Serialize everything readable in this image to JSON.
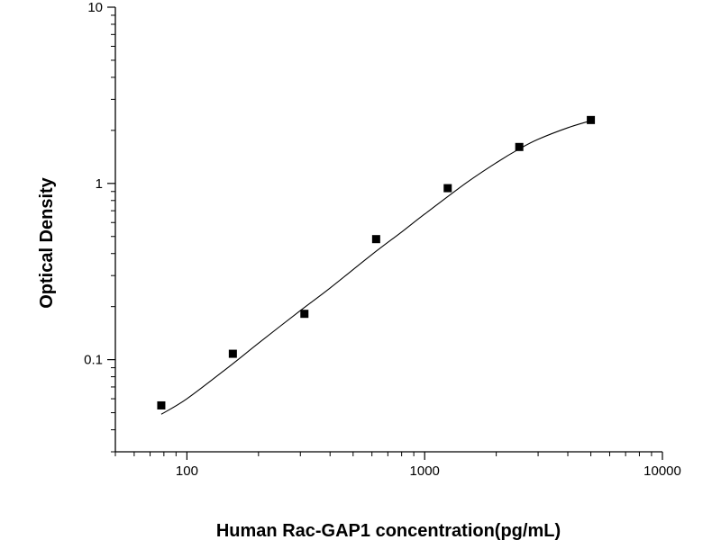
{
  "chart_data": {
    "type": "scatter",
    "title": "",
    "xlabel": "Human Rac-GAP1 concentration(pg/mL)",
    "ylabel": "Optical Density",
    "x_scale": "log",
    "y_scale": "log",
    "xlim": [
      50,
      10000
    ],
    "ylim": [
      0.03,
      10
    ],
    "x_ticks": [
      {
        "value": 100,
        "label": "100"
      },
      {
        "value": 1000,
        "label": "1000"
      },
      {
        "value": 10000,
        "label": "10000"
      }
    ],
    "y_ticks": [
      {
        "value": 0.1,
        "label": "0.1"
      },
      {
        "value": 1,
        "label": "1"
      },
      {
        "value": 10,
        "label": "10"
      }
    ],
    "grid": false,
    "legend": "none",
    "series": [
      {
        "marker": "square",
        "color": "#000000",
        "x": [
          78,
          156,
          312,
          625,
          1250,
          2500,
          5000
        ],
        "y": [
          0.055,
          0.108,
          0.182,
          0.483,
          0.94,
          1.61,
          2.29
        ]
      }
    ],
    "fit_curve": {
      "style": "line",
      "color": "#000000",
      "x": [
        78,
        100,
        150,
        200,
        300,
        400,
        600,
        800,
        1000,
        1500,
        2000,
        2500,
        3000,
        4000,
        5000
      ],
      "y": [
        0.049,
        0.06,
        0.091,
        0.124,
        0.19,
        0.255,
        0.395,
        0.53,
        0.67,
        1.01,
        1.31,
        1.57,
        1.78,
        2.07,
        2.27
      ]
    }
  }
}
